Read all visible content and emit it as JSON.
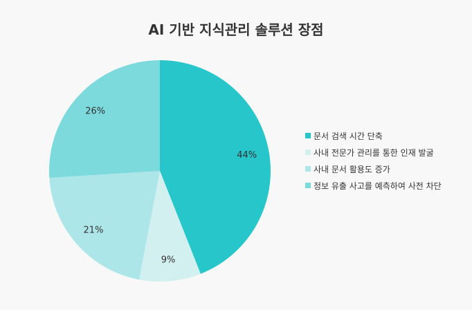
{
  "chart_data": {
    "type": "pie",
    "title": "AI 기반 지식관리 솔루션 장점",
    "categories": [
      "문서 검색 시간 단축",
      "사내 전문가 관리를 통한 인재 발굴",
      "사내 문서 활용도 증가",
      "정보 유출 사고를 예측하여 사전 차단"
    ],
    "values": [
      44,
      9,
      21,
      26
    ],
    "value_labels": [
      "44%",
      "9%",
      "21%",
      "26%"
    ],
    "colors": [
      "#26c6ca",
      "#d3f0f1",
      "#ade6e8",
      "#7cdadd"
    ],
    "legend_position": "right"
  }
}
